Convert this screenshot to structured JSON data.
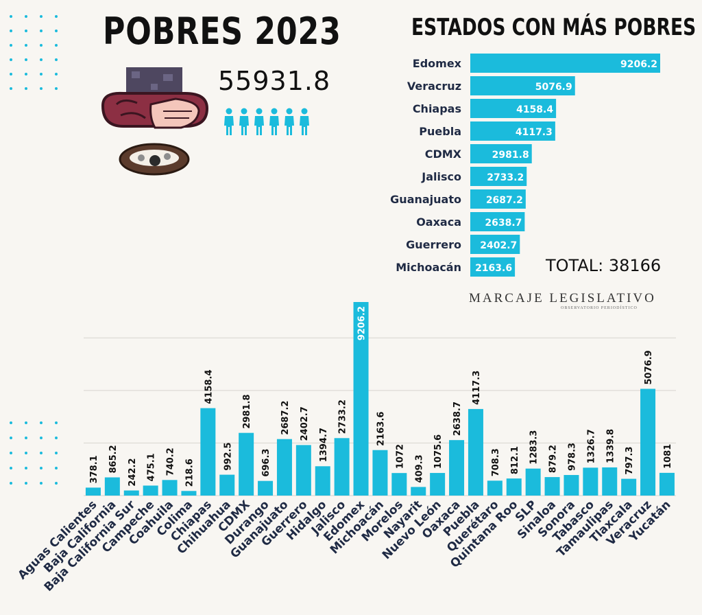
{
  "header": {
    "title": "POBRES 2023",
    "total_poor": "55931.8",
    "subtitle": "ESTADOS CON MÁS POBRES",
    "total_label": "TOTAL: 38166",
    "brand": "MARCAJE LEGISLATIVO",
    "brand_sub": "OBSERVATORIO PERIODÍSTICO"
  },
  "colors": {
    "bar": "#1bbbdc",
    "background": "#f8f6f2",
    "text": "#111111",
    "dots": "#1bbbdc",
    "axis_text": "#1f2a44"
  },
  "icons": [
    "poverty-figure-icon",
    "people-group-icon"
  ],
  "chart_data": [
    {
      "type": "bar",
      "orientation": "horizontal",
      "title": "ESTADOS CON MÁS POBRES",
      "categories": [
        "Edomex",
        "Veracruz",
        "Chiapas",
        "Puebla",
        "CDMX",
        "Jalisco",
        "Guanajuato",
        "Oaxaca",
        "Guerrero",
        "Michoacán"
      ],
      "values": [
        9206.2,
        5076.9,
        4158.4,
        4117.3,
        2981.8,
        2733.2,
        2687.2,
        2638.7,
        2402.7,
        2163.6
      ],
      "labels": [
        "9206.2",
        "5076.9",
        "4158.4",
        "4117.3",
        "2981.8",
        "2733.2",
        "2687.2",
        "2638.7",
        "2402.7",
        "2163.6"
      ],
      "xlim": [
        0,
        9206.2
      ],
      "grid": false
    },
    {
      "type": "bar",
      "orientation": "vertical",
      "categories": [
        "Aguas Calientes",
        "Baja California",
        "Baja California Sur",
        "Campeche",
        "Coahuila",
        "Colima",
        "Chiapas",
        "Chihuahua",
        "CDMX",
        "Durango",
        "Guanajuato",
        "Guerrero",
        "Hidalgo",
        "Jalisco",
        "Edomex",
        "Michoacán",
        "Morelos",
        "Nayarit",
        "Nuevo León",
        "Oaxaca",
        "Puebla",
        "Querétaro",
        "Quintana Roo",
        "SLP",
        "Sinaloa",
        "Sonora",
        "Tabasco",
        "Tamaulipas",
        "Tlaxcala",
        "Veracruz",
        "Yucatán"
      ],
      "values": [
        378.1,
        865.2,
        242.2,
        475.1,
        740.2,
        218.6,
        4158.4,
        992.5,
        2981.8,
        696.3,
        2687.2,
        2402.7,
        1394.7,
        2733.2,
        9206.2,
        2163.6,
        1072,
        409.3,
        1075.6,
        2638.7,
        4117.3,
        708.3,
        812.1,
        1283.3,
        879.2,
        978.3,
        1326.7,
        1339.8,
        797.3,
        5076.9,
        1081
      ],
      "labels": [
        "378.1",
        "865.2",
        "242.2",
        "475.1",
        "740.2",
        "218.6",
        "4158.4",
        "992.5",
        "2981.8",
        "696.3",
        "2687.2",
        "2402.7",
        "1394.7",
        "2733.2",
        "9206.2",
        "2163.6",
        "1072",
        "409.3",
        "1075.6",
        "2638.7",
        "4117.3",
        "708.3",
        "812.1",
        "1283.3",
        "879.2",
        "978.3",
        "1326.7",
        "1339.8",
        "797.3",
        "5076.9",
        "1081"
      ],
      "ylim": [
        0,
        9206.2
      ],
      "gridlines": [
        0,
        2500,
        5000,
        7500
      ],
      "grid": true
    }
  ]
}
